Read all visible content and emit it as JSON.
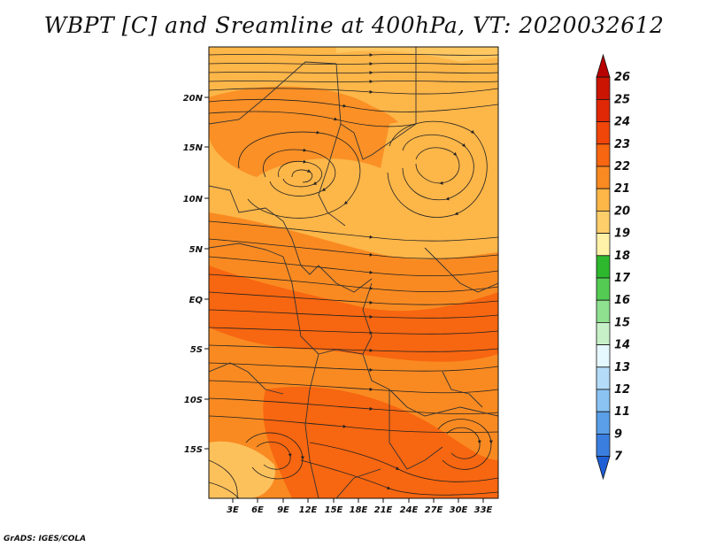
{
  "title": "WBPT [C] and Sreamline at 400hPa, VT: 2020032612",
  "footer": "GrADS: IGES/COLA",
  "map": {
    "lat_labels": [
      "20N",
      "15N",
      "10N",
      "5N",
      "EQ",
      "5S",
      "10S",
      "15S"
    ],
    "lon_labels": [
      "3E",
      "6E",
      "9E",
      "12E",
      "15E",
      "18E",
      "21E",
      "24E",
      "27E",
      "30E",
      "33E"
    ],
    "field": "wet-bulb potential temperature",
    "dominant_colors": [
      "#fdb648",
      "#f98a21",
      "#f76610"
    ],
    "overlay": "streamlines"
  },
  "colorbar": {
    "labels": [
      "26",
      "25",
      "24",
      "23",
      "22",
      "21",
      "20",
      "19",
      "18",
      "17",
      "16",
      "15",
      "14",
      "13",
      "12",
      "11",
      "9",
      "7"
    ],
    "colors": [
      "#b80000",
      "#cc1402",
      "#e02806",
      "#f0460a",
      "#f76610",
      "#f98a21",
      "#fdb648",
      "#fece6b",
      "#fff2a8",
      "#2eb82e",
      "#54cc54",
      "#8fe08f",
      "#c8f0c8",
      "#e6f8ff",
      "#b4dcf8",
      "#8ac3f2",
      "#5a9fe8",
      "#3a7fe0",
      "#1f5fd6"
    ]
  }
}
